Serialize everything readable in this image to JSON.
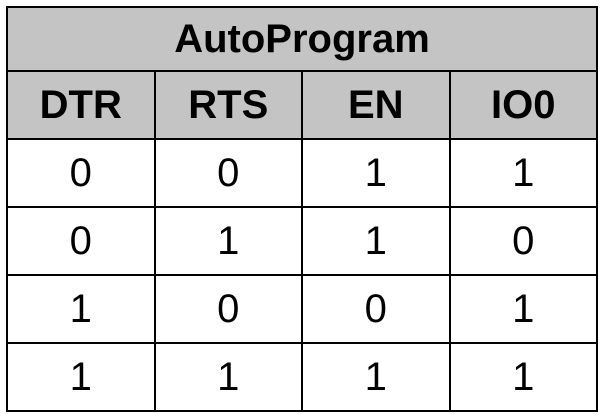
{
  "table": {
    "title": "AutoProgram",
    "headers": [
      "DTR",
      "RTS",
      "EN",
      "IO0"
    ],
    "rows": [
      [
        "0",
        "0",
        "1",
        "1"
      ],
      [
        "0",
        "1",
        "1",
        "0"
      ],
      [
        "1",
        "0",
        "0",
        "1"
      ],
      [
        "1",
        "1",
        "1",
        "1"
      ]
    ]
  },
  "colors": {
    "header_background": "#c4c4c4",
    "border": "#000000",
    "text": "#000000"
  }
}
